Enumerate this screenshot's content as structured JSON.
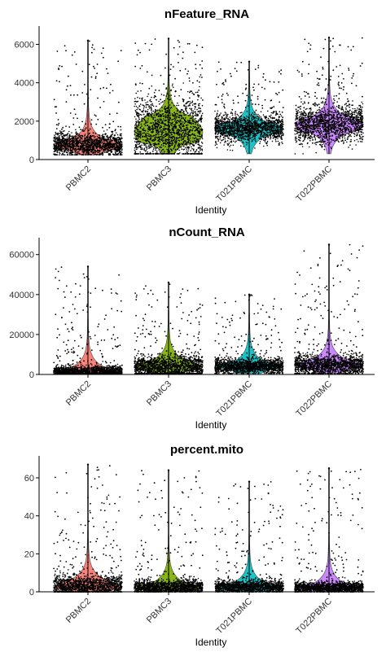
{
  "chart_data": [
    {
      "type": "violin",
      "title": "nFeature_RNA",
      "xlabel": "Identity",
      "ylabel": "",
      "categories": [
        "PBMC2",
        "PBMC3",
        "T021PBMC",
        "T022PBMC"
      ],
      "colors": [
        "#F8766D",
        "#7CAE00",
        "#00BFC4",
        "#C77CFF"
      ],
      "ylim": [
        0,
        6700
      ],
      "yticks": [
        0,
        2000,
        4000,
        6000
      ],
      "yticklabels": [
        "0",
        "2000",
        "4000",
        "6000"
      ],
      "groups": [
        {
          "median": 750,
          "q1": 500,
          "q3": 1000,
          "max": 6200,
          "min": 250
        },
        {
          "median": 1400,
          "q1": 850,
          "q3": 2300,
          "max": 6300,
          "min": 300
        },
        {
          "median": 1600,
          "q1": 1300,
          "q3": 1900,
          "max": 5100,
          "min": 300
        },
        {
          "median": 1800,
          "q1": 1400,
          "q3": 2200,
          "max": 6350,
          "min": 300
        }
      ]
    },
    {
      "type": "violin",
      "title": "nCount_RNA",
      "xlabel": "Identity",
      "ylabel": "",
      "categories": [
        "PBMC2",
        "PBMC3",
        "T021PBMC",
        "T022PBMC"
      ],
      "colors": [
        "#F8766D",
        "#7CAE00",
        "#00BFC4",
        "#C77CFF"
      ],
      "ylim": [
        0,
        66000
      ],
      "yticks": [
        0,
        20000,
        40000,
        60000
      ],
      "yticklabels": [
        "0",
        "20000",
        "40000",
        "60000"
      ],
      "groups": [
        {
          "median": 1500,
          "q1": 800,
          "q3": 3000,
          "max": 54000,
          "min": 300
        },
        {
          "median": 3500,
          "q1": 1800,
          "q3": 6500,
          "max": 46000,
          "min": 500
        },
        {
          "median": 4000,
          "q1": 2500,
          "q3": 5500,
          "max": 40000,
          "min": 500
        },
        {
          "median": 4500,
          "q1": 2800,
          "q3": 7000,
          "max": 65000,
          "min": 500
        }
      ]
    },
    {
      "type": "violin",
      "title": "percent.mito",
      "xlabel": "Identity",
      "ylabel": "",
      "categories": [
        "PBMC2",
        "PBMC3",
        "T021PBMC",
        "T022PBMC"
      ],
      "colors": [
        "#F8766D",
        "#7CAE00",
        "#00BFC4",
        "#C77CFF"
      ],
      "ylim": [
        0,
        69
      ],
      "yticks": [
        0,
        20,
        40,
        60
      ],
      "yticklabels": [
        "0",
        "20",
        "40",
        "60"
      ],
      "groups": [
        {
          "median": 2.5,
          "q1": 1.0,
          "q3": 6.0,
          "max": 67,
          "min": 0
        },
        {
          "median": 2.2,
          "q1": 1.0,
          "q3": 4.0,
          "max": 64,
          "min": 0
        },
        {
          "median": 2.4,
          "q1": 1.2,
          "q3": 4.0,
          "max": 58,
          "min": 0
        },
        {
          "median": 2.0,
          "q1": 1.0,
          "q3": 3.5,
          "max": 65,
          "min": 0
        }
      ]
    }
  ]
}
